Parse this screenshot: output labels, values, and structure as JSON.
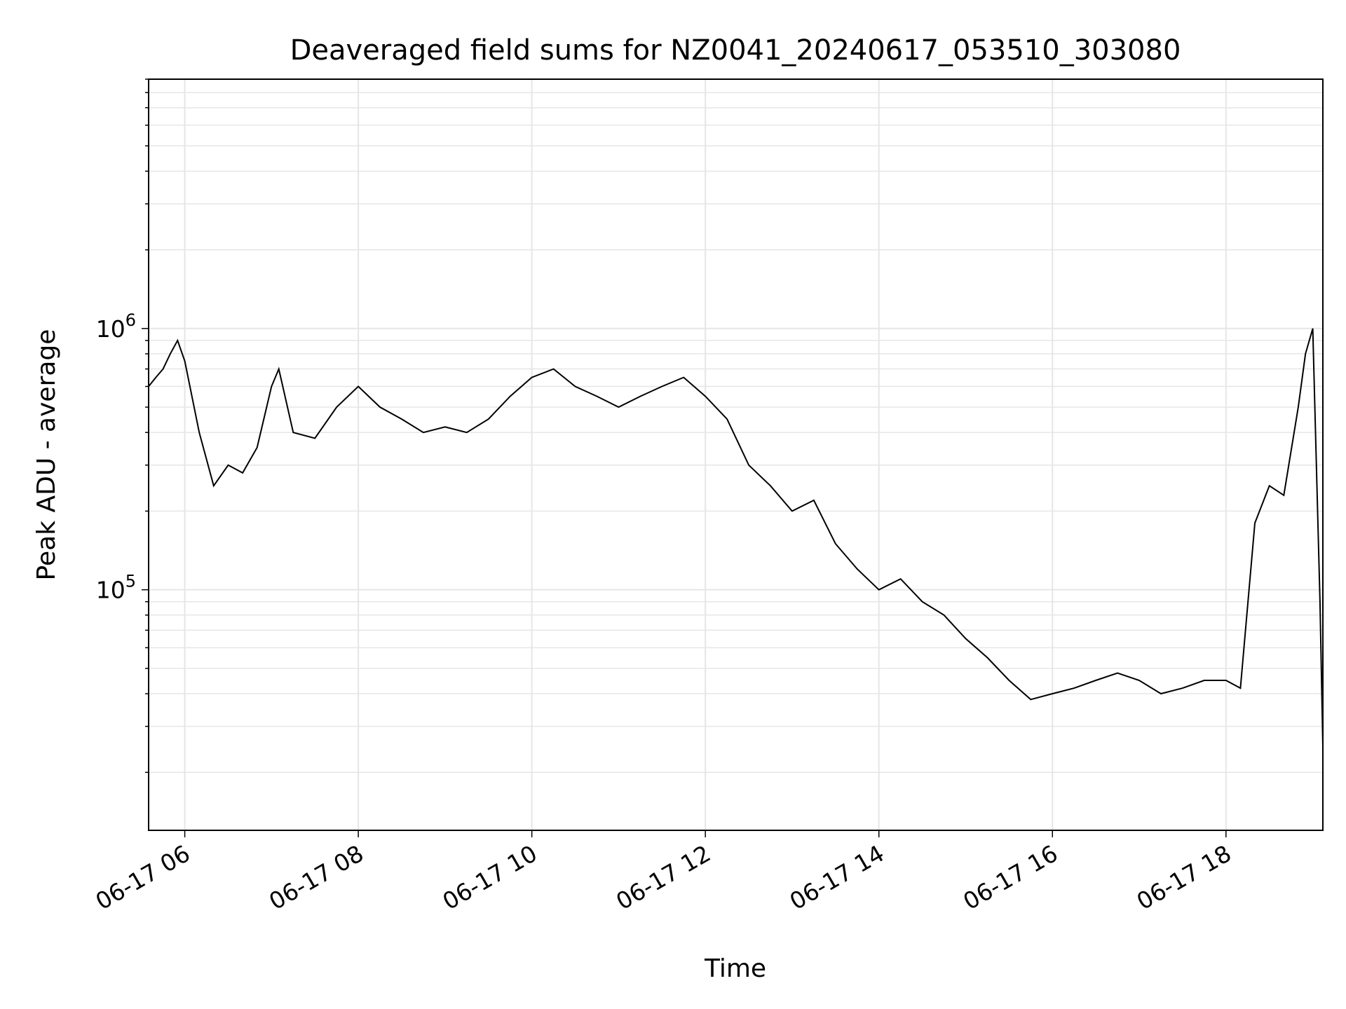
{
  "chart_data": {
    "type": "line",
    "title": "Deaveraged field sums for NZ0041_20240617_053510_303080",
    "xlabel": "Time",
    "ylabel": "Peak ADU - average",
    "yscale": "log",
    "x_ticks": [
      "06-17 06",
      "06-17 08",
      "06-17 10",
      "06-17 12",
      "06-17 14",
      "06-17 16",
      "06-17 18"
    ],
    "y_ticks": [
      {
        "value": 100000,
        "base": "10",
        "exp": "5"
      },
      {
        "value": 1000000,
        "base": "10",
        "exp": "6"
      }
    ],
    "xlim": [
      "2024-06-17 05:35",
      "2024-06-17 19:07"
    ],
    "ylim": [
      12000,
      9000000
    ],
    "grid": true,
    "line_color": "#000000",
    "grid_color": "#e6e6e6",
    "series": [
      {
        "x": [
          "2024-06-17 05:35",
          "2024-06-17 05:40",
          "2024-06-17 05:45",
          "2024-06-17 05:50",
          "2024-06-17 05:55",
          "2024-06-17 06:00",
          "2024-06-17 06:10",
          "2024-06-17 06:20",
          "2024-06-17 06:30",
          "2024-06-17 06:40",
          "2024-06-17 06:50",
          "2024-06-17 07:00",
          "2024-06-17 07:05",
          "2024-06-17 07:15",
          "2024-06-17 07:30",
          "2024-06-17 07:45",
          "2024-06-17 08:00",
          "2024-06-17 08:15",
          "2024-06-17 08:30",
          "2024-06-17 08:45",
          "2024-06-17 09:00",
          "2024-06-17 09:15",
          "2024-06-17 09:30",
          "2024-06-17 09:45",
          "2024-06-17 10:00",
          "2024-06-17 10:15",
          "2024-06-17 10:30",
          "2024-06-17 10:45",
          "2024-06-17 11:00",
          "2024-06-17 11:15",
          "2024-06-17 11:30",
          "2024-06-17 11:45",
          "2024-06-17 12:00",
          "2024-06-17 12:15",
          "2024-06-17 12:30",
          "2024-06-17 12:45",
          "2024-06-17 13:00",
          "2024-06-17 13:15",
          "2024-06-17 13:30",
          "2024-06-17 13:45",
          "2024-06-17 14:00",
          "2024-06-17 14:15",
          "2024-06-17 14:30",
          "2024-06-17 14:45",
          "2024-06-17 15:00",
          "2024-06-17 15:15",
          "2024-06-17 15:30",
          "2024-06-17 15:45",
          "2024-06-17 16:00",
          "2024-06-17 16:15",
          "2024-06-17 16:30",
          "2024-06-17 16:45",
          "2024-06-17 17:00",
          "2024-06-17 17:15",
          "2024-06-17 17:30",
          "2024-06-17 17:45",
          "2024-06-17 18:00",
          "2024-06-17 18:10",
          "2024-06-17 18:20",
          "2024-06-17 18:30",
          "2024-06-17 18:40",
          "2024-06-17 18:50",
          "2024-06-17 18:55",
          "2024-06-17 19:00",
          "2024-06-17 19:05",
          "2024-06-17 19:07"
        ],
        "y": [
          600000,
          650000,
          700000,
          800000,
          900000,
          750000,
          400000,
          250000,
          300000,
          280000,
          350000,
          600000,
          700000,
          400000,
          380000,
          500000,
          600000,
          500000,
          450000,
          400000,
          420000,
          400000,
          450000,
          550000,
          650000,
          700000,
          600000,
          550000,
          500000,
          550000,
          600000,
          650000,
          550000,
          450000,
          300000,
          250000,
          200000,
          220000,
          150000,
          120000,
          100000,
          110000,
          90000,
          80000,
          65000,
          55000,
          45000,
          38000,
          40000,
          42000,
          45000,
          48000,
          45000,
          40000,
          42000,
          45000,
          45000,
          42000,
          180000,
          250000,
          230000,
          500000,
          800000,
          1000000,
          90000,
          25000
        ]
      }
    ]
  }
}
